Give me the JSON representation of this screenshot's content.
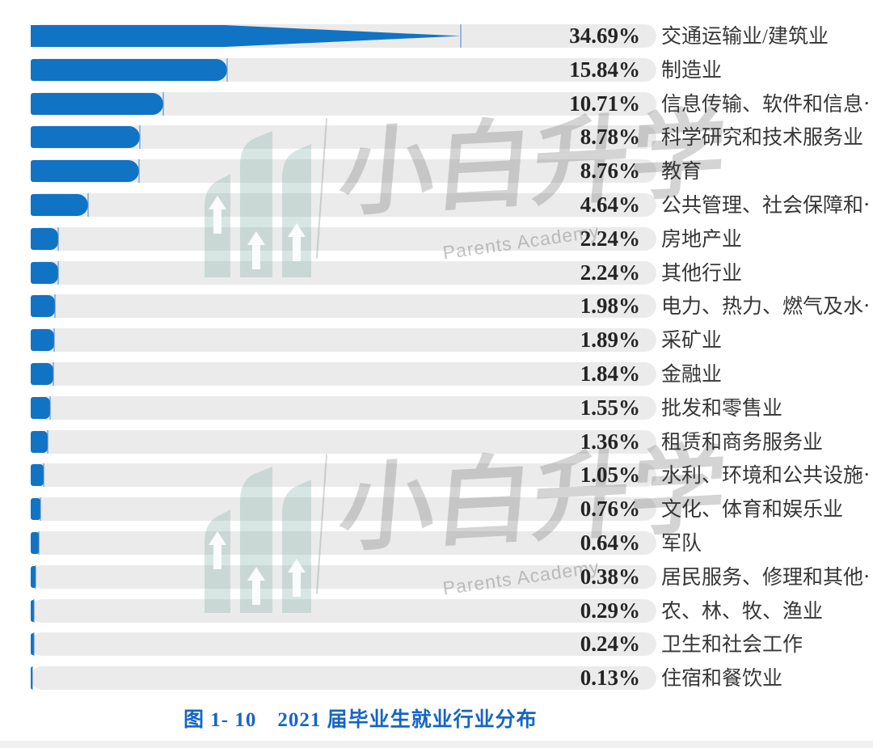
{
  "colors": {
    "bar": "#1173c4",
    "track": "#ebebeb",
    "tick": "#7fb0dd",
    "percent_text": "#242424",
    "label_text": "#363636",
    "caption_blue": "#1565c6",
    "watermark_teal": "#d9e6e2",
    "watermark_gray": "#c9c9c9"
  },
  "watermark": {
    "logo": "parents-academy-logo",
    "cjk_text": "小白升学",
    "latin_text": "Parents Academy"
  },
  "caption": {
    "figure_label": "图 1- 10",
    "title": "2021 届毕业生就业行业分布"
  },
  "chart_data": {
    "type": "bar",
    "orientation": "horizontal",
    "title": "2021 届毕业生就业行业分布",
    "unit": "%",
    "xlim": [
      0,
      50.5
    ],
    "grid": false,
    "legend": false,
    "categories": [
      "交通运输业/建筑业",
      "制造业",
      "信息传输、软件和信息⋯",
      "科学研究和技术服务业",
      "教育",
      "公共管理、社会保障和⋯",
      "房地产业",
      "其他行业",
      "电力、热力、燃气及水⋯",
      "采矿业",
      "金融业",
      "批发和零售业",
      "租赁和商务服务业",
      "水利、环境和公共设施⋯",
      "文化、体育和娱乐业",
      "军队",
      "居民服务、修理和其他⋯",
      "农、林、牧、渔业",
      "卫生和社会工作",
      "住宿和餐饮业"
    ],
    "values": [
      34.69,
      15.84,
      10.71,
      8.78,
      8.76,
      4.64,
      2.24,
      2.24,
      1.98,
      1.89,
      1.84,
      1.55,
      1.36,
      1.05,
      0.76,
      0.64,
      0.38,
      0.29,
      0.24,
      0.13
    ],
    "value_labels": [
      "34.69%",
      "15.84%",
      "10.71%",
      "8.78%",
      "8.76%",
      "4.64%",
      "2.24%",
      "2.24%",
      "1.98%",
      "1.89%",
      "1.84%",
      "1.55%",
      "1.36%",
      "1.05%",
      "0.76%",
      "0.64%",
      "0.38%",
      "0.29%",
      "0.24%",
      "0.13%"
    ]
  }
}
